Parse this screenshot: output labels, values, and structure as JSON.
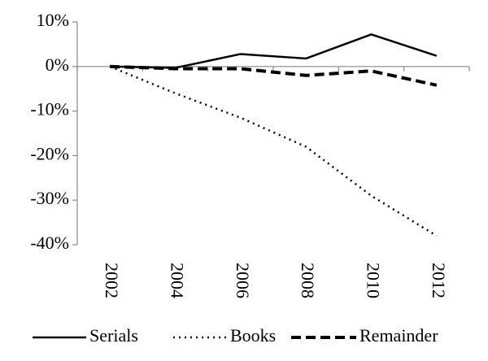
{
  "chart_data": {
    "type": "line",
    "categories": [
      "2002",
      "2004",
      "2006",
      "2008",
      "2010",
      "2012"
    ],
    "series": [
      {
        "name": "Serials",
        "color": "#000000",
        "style": "solid",
        "values": [
          0,
          -0.3,
          2.8,
          1.8,
          7.2,
          2.4
        ]
      },
      {
        "name": "Books",
        "color": "#000000",
        "style": "dotted",
        "values": [
          0,
          -6,
          -11.5,
          -18,
          -29,
          -38
        ]
      },
      {
        "name": "Remainder",
        "color": "#000000",
        "style": "dashed",
        "values": [
          0,
          -0.5,
          -0.5,
          -2,
          -1,
          -4.2
        ]
      }
    ],
    "ylim": [
      -40,
      10
    ],
    "yticks": [
      {
        "value": -40,
        "label": "-40%"
      },
      {
        "value": -30,
        "label": "-30%"
      },
      {
        "value": -20,
        "label": "-20%"
      },
      {
        "value": -10,
        "label": "-10%"
      },
      {
        "value": 0,
        "label": "0%"
      },
      {
        "value": 10,
        "label": "10%"
      }
    ],
    "grid": false,
    "legend": "bottom"
  }
}
